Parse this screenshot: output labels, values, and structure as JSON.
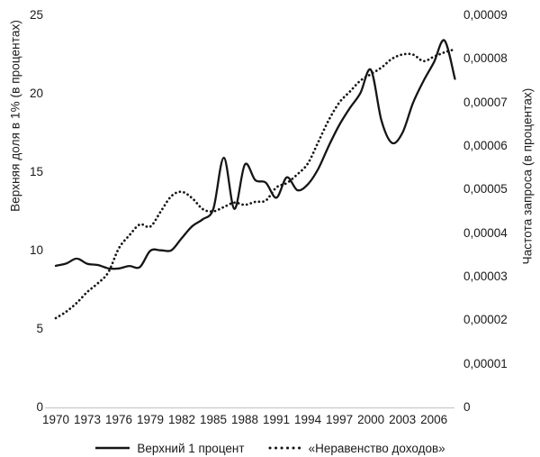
{
  "colors": {
    "line": "#151515",
    "axis_line": "#c9c9c9",
    "text": "#1a1a1a",
    "background": "#ffffff"
  },
  "chart_data": {
    "type": "line",
    "title": "",
    "grid": "off",
    "legend_position": "bottom",
    "x_tick_labels": [
      "1970",
      "1973",
      "1976",
      "1979",
      "1982",
      "1985",
      "1988",
      "1991",
      "1994",
      "1997",
      "2000",
      "2003",
      "2006"
    ],
    "left_axis": {
      "label": "Верхняя доля в 1% (в процентах)",
      "tick_labels_top_to_bottom": [
        "25",
        "20",
        "15",
        "10",
        "5",
        "0"
      ],
      "range": [
        0,
        25
      ]
    },
    "right_axis": {
      "label": "Частота запроса (в процентах)",
      "tick_labels_top_to_bottom": [
        "0,00009",
        "0,00008",
        "0,00007",
        "0,00006",
        "0,00005",
        "0,00004",
        "0,00003",
        "0,00002",
        "0,00001",
        "0"
      ],
      "range": [
        0,
        9e-05
      ]
    },
    "years": [
      1970,
      1971,
      1972,
      1973,
      1974,
      1975,
      1976,
      1977,
      1978,
      1979,
      1980,
      1981,
      1982,
      1983,
      1984,
      1985,
      1986,
      1987,
      1988,
      1989,
      1990,
      1991,
      1992,
      1993,
      1994,
      1995,
      1996,
      1997,
      1998,
      1999,
      2000,
      2001,
      2002,
      2003,
      2004,
      2005,
      2006,
      2007,
      2008
    ],
    "series": [
      {
        "name": "Верхний 1 процент",
        "axis": "left",
        "style": "solid",
        "values": [
          9.03,
          9.18,
          9.49,
          9.16,
          9.08,
          8.87,
          8.86,
          9.02,
          8.95,
          9.99,
          10.02,
          10.02,
          10.8,
          11.56,
          12.0,
          12.67,
          15.92,
          12.66,
          15.49,
          14.49,
          14.33,
          13.37,
          14.67,
          13.85,
          14.23,
          15.23,
          16.69,
          18.02,
          19.09,
          20.04,
          21.52,
          18.3,
          16.87,
          17.5,
          19.4,
          20.8,
          22.0,
          23.4,
          20.95
        ]
      },
      {
        "name": "«Неравенство доходов»",
        "axis": "right",
        "style": "dotted",
        "values": [
          2.05e-05,
          2.2e-05,
          2.4e-05,
          2.65e-05,
          2.85e-05,
          3.1e-05,
          3.65e-05,
          3.95e-05,
          4.2e-05,
          4.15e-05,
          4.5e-05,
          4.85e-05,
          4.95e-05,
          4.8e-05,
          4.55e-05,
          4.5e-05,
          4.6e-05,
          4.7e-05,
          4.65e-05,
          4.72e-05,
          4.75e-05,
          5.05e-05,
          5.15e-05,
          5.35e-05,
          5.6e-05,
          6.1e-05,
          6.6e-05,
          7e-05,
          7.25e-05,
          7.5e-05,
          7.65e-05,
          7.8e-05,
          8e-05,
          8.1e-05,
          8.1e-05,
          7.95e-05,
          8.05e-05,
          8.15e-05,
          8.22e-05
        ]
      }
    ]
  }
}
